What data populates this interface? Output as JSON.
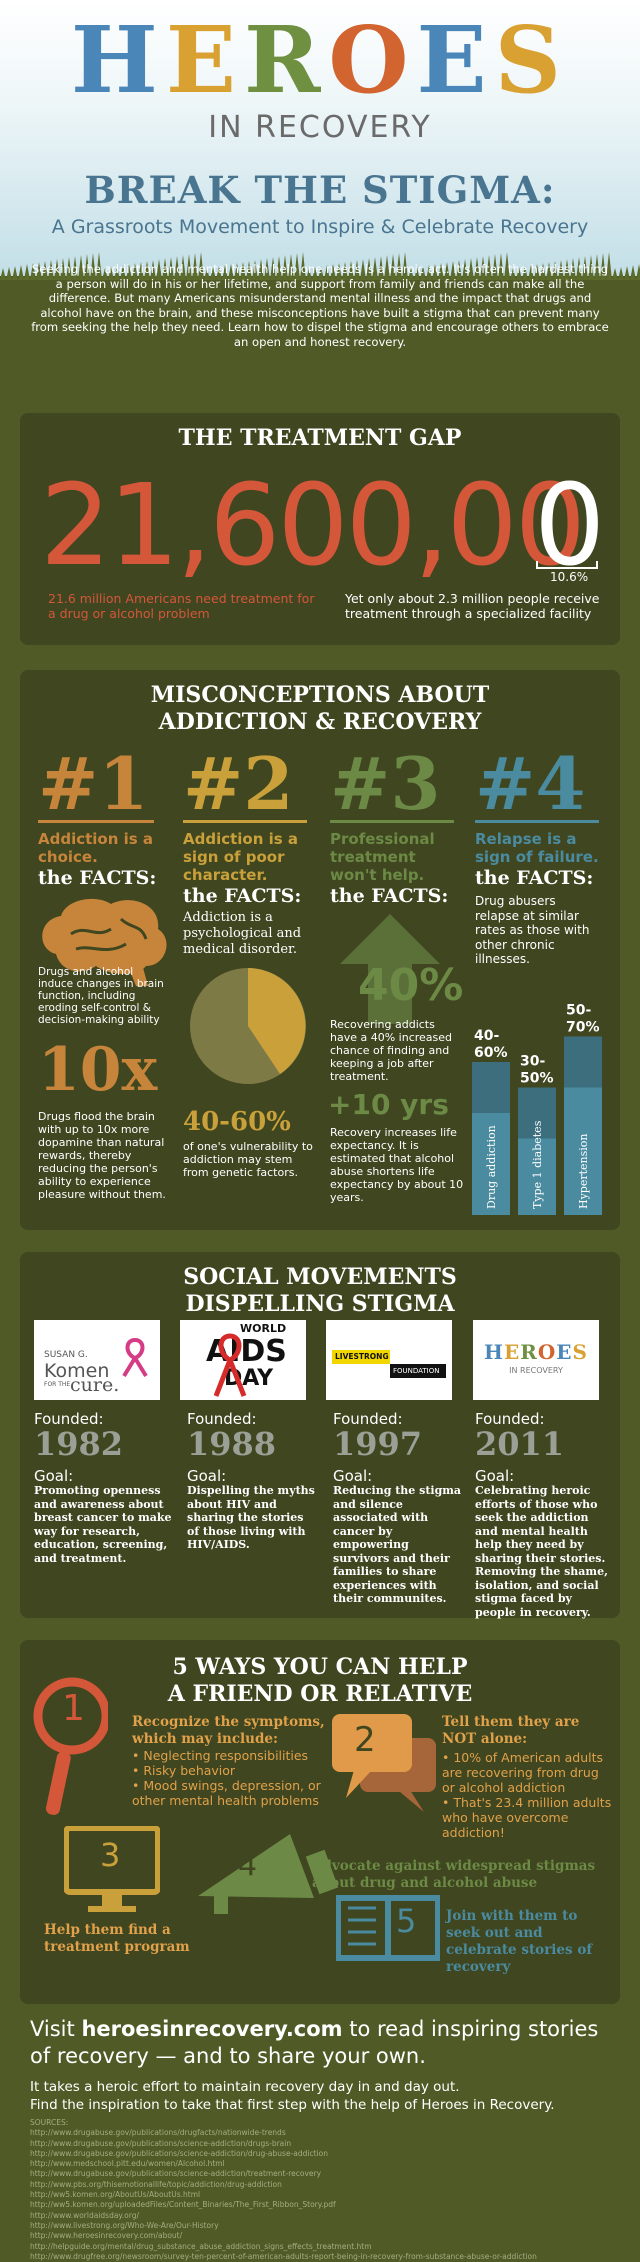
{
  "header": {
    "logo_letters": [
      {
        "ch": "H",
        "color": "#4a86b8"
      },
      {
        "ch": "E",
        "color": "#d9a131"
      },
      {
        "ch": "R",
        "color": "#6e9040"
      },
      {
        "ch": "O",
        "color": "#d2642f"
      },
      {
        "ch": "E",
        "color": "#4a86b8"
      },
      {
        "ch": "S",
        "color": "#d9a131"
      }
    ],
    "subtitle": "IN RECOVERY",
    "title": "BREAK THE STIGMA:",
    "tagline": "A Grassroots Movement to Inspire & Celebrate Recovery"
  },
  "intro": "Seeking the addiction and mental health help one needs is a heroic act. It's often the hardest thing a person will do in his or her lifetime, and support from family and friends can make all the difference. But many Americans misunderstand mental illness and the impact that drugs and alcohol have on the brain, and these misconceptions have built a stigma that can prevent many from seeking the help they need. Learn how to dispel the stigma and encourage others to embrace an open and honest recovery.",
  "treatment_gap": {
    "title": "THE TREATMENT GAP",
    "big_number_main": "21,600,00",
    "big_number_last": "0",
    "percent": "10.6%",
    "left_text": "21.6 million Americans need treatment for a drug or alcohol problem",
    "right_text": "Yet only about 2.3 million people receive treatment through a specialized facility"
  },
  "misconceptions": {
    "title_line1": "MISCONCEPTIONS ABOUT",
    "title_line2": "ADDICTION & RECOVERY",
    "facts_label": "the FACTS:",
    "items": [
      {
        "num": "#1",
        "color": "#c6853a",
        "myth": "Addiction is a choice.",
        "fact1": "Drugs and alcohol induce changes in brain function, including eroding self-control & decision-making ability",
        "stat": "10x",
        "fact2": "Drugs flood the brain with up to 10x more dopamine than natural rewards, thereby reducing the person's ability to experience pleasure without them."
      },
      {
        "num": "#2",
        "color": "#c9a03a",
        "myth": "Addiction is a sign of poor character.",
        "fact1": "Addiction is a psychological and medical disorder.",
        "stat": "40-60%",
        "fact2": "of one's vulnerability to addiction may stem from genetic factors."
      },
      {
        "num": "#3",
        "color": "#6c8a45",
        "myth": "Professional treatment won't help.",
        "stat": "40%",
        "fact1": "Recovering addicts have a 40% increased chance of finding and keeping a job after treatment.",
        "stat2": "+10 yrs",
        "fact2": "Recovery increases life expectancy. It is estimated that alcohol abuse shortens life expectancy by about 10 years."
      },
      {
        "num": "#4",
        "color": "#4a8ba0",
        "myth": "Relapse is a sign of failure.",
        "fact1": "Drug abusers relapse at similar rates as those with other chronic illnesses.",
        "bars": [
          {
            "label": "Drug addiction",
            "range": "40-60%",
            "low": 40,
            "high": 60
          },
          {
            "label": "Type 1 diabetes",
            "range": "30-50%",
            "low": 30,
            "high": 50
          },
          {
            "label": "Hypertension",
            "range": "50-70%",
            "low": 50,
            "high": 70
          }
        ]
      }
    ]
  },
  "movements": {
    "title_line1": "SOCIAL MOVEMENTS",
    "title_line2": "DISPELLING STIGMA",
    "founded_label": "Founded:",
    "goal_label": "Goal:",
    "items": [
      {
        "logo_text1": "SUSAN G.",
        "logo_text2": "Komen",
        "logo_text3": "FOR THE",
        "logo_text4": "cure.",
        "year": "1982",
        "goal": "Promoting openness and awareness about breast cancer to make way for research, education, screening, and treatment."
      },
      {
        "logo_text1": "WORLD",
        "logo_text2": "AIDS",
        "logo_text3": "DAY",
        "year": "1988",
        "goal": "Dispelling the myths about HIV and sharing the stories of those living with HIV/AIDS."
      },
      {
        "logo_text1": "LIVESTRONG",
        "logo_text2": "FOUNDATION",
        "year": "1997",
        "goal": "Reducing the stigma and silence associated with cancer by empowering survivors and their families to share experiences with their communites."
      },
      {
        "logo_text1": "HEROES",
        "logo_text2": "IN RECOVERY",
        "year": "2011",
        "goal": "Celebrating heroic efforts of those who seek the addiction and mental health help they need by sharing their stories. Removing the shame, isolation, and social stigma faced by people in recovery."
      }
    ]
  },
  "help": {
    "title_line1": "5 WAYS YOU CAN HELP",
    "title_line2": "A FRIEND OR RELATIVE",
    "items": [
      {
        "num": "1",
        "head": "Recognize the symptoms, which may include:",
        "list": [
          "Neglecting responsibilities",
          "Risky behavior",
          "Mood swings, depression, or other mental health problems"
        ]
      },
      {
        "num": "2",
        "head": "Tell them they are NOT alone:",
        "list": [
          "10% of American adults are recovering from drug or alcohol addiction",
          "That's 23.4 million adults who have overcome addiction!"
        ]
      },
      {
        "num": "3",
        "head": "Help them find a treatment program"
      },
      {
        "num": "4",
        "head": "Advocate against widespread stigmas about drug and alcohol abuse"
      },
      {
        "num": "5",
        "head": "Join with them to seek out and celebrate stories of recovery"
      }
    ]
  },
  "footer": {
    "visit_pre": "Visit ",
    "visit_link": "heroesinrecovery.com",
    "visit_post": " to read inspiring stories of recovery — and to share your own.",
    "line1": "It takes a heroic effort to maintain recovery day in and day out.",
    "line2": "Find the inspiration to take that first step with the help of Heroes in Recovery.",
    "sources_label": "SOURCES:",
    "sources": [
      "http://www.drugabuse.gov/publications/drugfacts/nationwide-trends",
      "http://www.drugabuse.gov/publications/science-addiction/drugs-brain",
      "http://www.drugabuse.gov/publications/science-addiction/drug-abuse-addiction",
      "http://www.medschool.pitt.edu/women/Alcohol.html",
      "http://www.drugabuse.gov/publications/science-addiction/treatment-recovery",
      "http://www.pbs.org/thisemotionallife/topic/addiction/drug-addiction",
      "http://ww5.komen.org/AboutUs/AboutUs.html",
      "http://ww5.komen.org/uploadedFiles/Content_Binaries/The_First_Ribbon_Story.pdf",
      "http://www.worldaidsday.org/",
      "http://www.livestrong.org/Who-We-Are/Our-History",
      "http://www.heroesinrecovery.com/about/",
      "http://helpguide.org/mental/drug_substance_abuse_addiction_signs_effects_treatment.htm",
      "http://www.drugfree.org/newsroom/survey-ten-percent-of-american-adults-report-being-in-recovery-from-substance-abuse-or-addiction"
    ]
  }
}
